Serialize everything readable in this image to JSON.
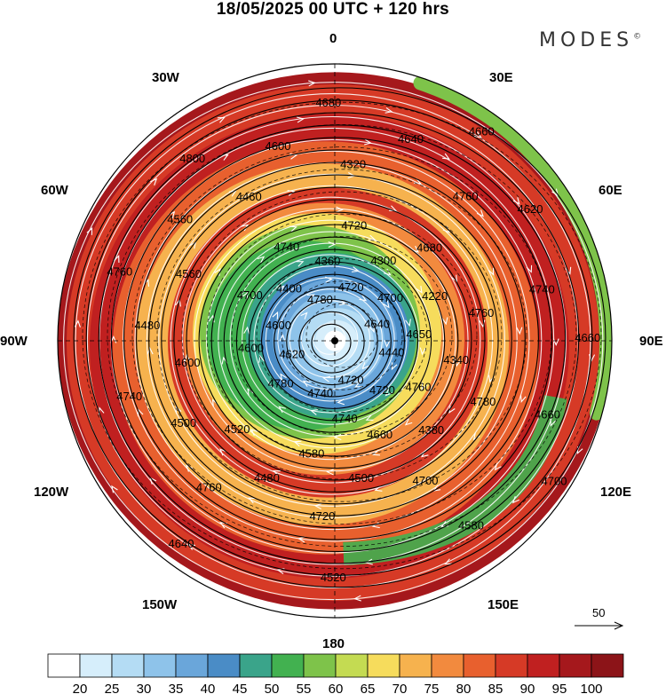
{
  "title": "18/05/2025  00 UTC  + 120 hrs",
  "brand": "MODES",
  "brand_mark": "©",
  "longitude_labels": {
    "top": "0",
    "top_left": "30W",
    "top_right": "30E",
    "left_upper": "60W",
    "right_upper": "60E",
    "left": "90W",
    "right": "90E",
    "left_lower": "120W",
    "right_lower": "120E",
    "bottom_left": "150W",
    "bottom_right": "150E",
    "bottom": "180"
  },
  "reference_vector": {
    "label": "50"
  },
  "colorbar": {
    "labels": [
      "20",
      "25",
      "30",
      "35",
      "40",
      "45",
      "50",
      "55",
      "60",
      "65",
      "70",
      "75",
      "80",
      "85",
      "90",
      "95",
      "100"
    ],
    "colors": [
      "#ffffff",
      "#d6eefb",
      "#b4dcf4",
      "#8ec3ea",
      "#6aa6da",
      "#4a8cc6",
      "#3aa48a",
      "#42b150",
      "#7ec34a",
      "#c4db52",
      "#f6dc5c",
      "#f6b24e",
      "#f28a3e",
      "#e8602e",
      "#d63a26",
      "#c02020",
      "#a5181c",
      "#8c1418"
    ]
  },
  "contour_labels": [
    "4780",
    "4720",
    "4700",
    "4650",
    "4760",
    "4660",
    "4580",
    "4520",
    "4600",
    "4560",
    "4460",
    "4320",
    "4760",
    "4740",
    "4660",
    "4580",
    "4520",
    "4640",
    "4620",
    "4600",
    "4400",
    "4360",
    "4300",
    "4220",
    "4340",
    "4380",
    "4500",
    "4480",
    "4500",
    "4480",
    "4560",
    "4600",
    "4640",
    "4620",
    "4660",
    "4700",
    "4720",
    "4740",
    "4780",
    "4600",
    "4700",
    "4740",
    "4720",
    "4680",
    "4760",
    "4780",
    "4700",
    "4720",
    "4760",
    "4740",
    "4760",
    "4800",
    "4680",
    "4660",
    "4640",
    "4440",
    "4720",
    "4740"
  ],
  "colors": {
    "dark_red": "#8c1418",
    "red": "#c02020",
    "orange": "#f28a3e",
    "yellow": "#f6dc5c",
    "green": "#42b150",
    "teal": "#3aa48a",
    "blue": "#4a8cc6",
    "light_blue": "#b4dcf4"
  }
}
